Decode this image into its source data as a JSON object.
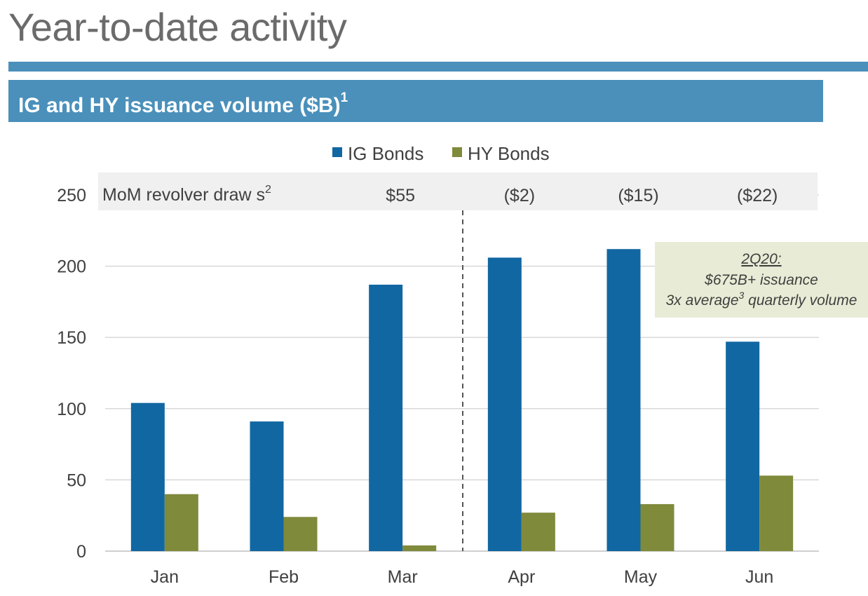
{
  "header": {
    "title": "Year-to-date activity",
    "banner_text": "IG and HY issuance volume ($B)",
    "banner_footnote": "1"
  },
  "revolver": {
    "label": "MoM revolver draw s",
    "footnote": "2",
    "values": [
      "",
      "",
      "$55",
      "($2)",
      "($15)",
      "($22)"
    ]
  },
  "callout": {
    "heading": "2Q20:",
    "line1": "$675B+ issuance",
    "line2_pre": "3x average",
    "line2_sup": "3",
    "line2_post": " quarterly volume"
  },
  "colors": {
    "ig": "#1167a2",
    "hy": "#7f8a3b",
    "banner": "#4a90bb",
    "callout_bg": "#e8ecd6"
  },
  "chart_data": {
    "type": "bar",
    "categories": [
      "Jan",
      "Feb",
      "Mar",
      "Apr",
      "May",
      "Jun"
    ],
    "series": [
      {
        "name": "IG Bonds",
        "values": [
          104,
          91,
          187,
          206,
          212,
          147
        ]
      },
      {
        "name": "HY Bonds",
        "values": [
          40,
          24,
          4,
          27,
          33,
          53
        ]
      }
    ],
    "title": "IG and HY issuance volume ($B)",
    "xlabel": "",
    "ylabel": "",
    "ylim": [
      0,
      250
    ],
    "yticks": [
      0,
      50,
      100,
      150,
      200,
      250
    ],
    "grid": true,
    "legend_position": "top-center",
    "divider_after_category": "Mar"
  }
}
